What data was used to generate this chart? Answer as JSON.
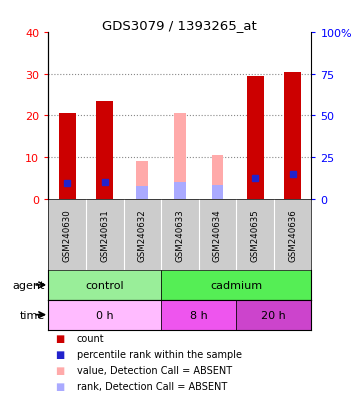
{
  "title": "GDS3079 / 1393265_at",
  "samples": [
    "GSM240630",
    "GSM240631",
    "GSM240632",
    "GSM240633",
    "GSM240634",
    "GSM240635",
    "GSM240636"
  ],
  "count_values": [
    20.5,
    23.5,
    null,
    null,
    null,
    29.5,
    30.5
  ],
  "rank_values": [
    9.5,
    10.0,
    null,
    null,
    null,
    12.5,
    15.0
  ],
  "absent_value_values": [
    null,
    null,
    9.0,
    20.5,
    10.5,
    null,
    null
  ],
  "absent_rank_values": [
    null,
    null,
    7.5,
    10.0,
    8.0,
    null,
    null
  ],
  "ylim_left": [
    0,
    40
  ],
  "ylim_right": [
    0,
    100
  ],
  "yticks_left": [
    0,
    10,
    20,
    30,
    40
  ],
  "yticks_right": [
    0,
    25,
    50,
    75,
    100
  ],
  "count_color": "#cc0000",
  "rank_color": "#2222cc",
  "absent_value_color": "#ffaaaa",
  "absent_rank_color": "#aaaaff",
  "agent_control_color": "#99ee99",
  "agent_cadmium_color": "#55ee55",
  "time_0h_color": "#ffbbff",
  "time_8h_color": "#ee55ee",
  "time_20h_color": "#cc44cc",
  "sample_bg_color": "#cccccc",
  "grid_color": "#888888",
  "agent_label": "agent",
  "time_label": "time",
  "control_label": "control",
  "cadmium_label": "cadmium",
  "legend_items": [
    {
      "color": "#cc0000",
      "label": "count",
      "marker": "square"
    },
    {
      "color": "#2222cc",
      "label": "percentile rank within the sample",
      "marker": "square"
    },
    {
      "color": "#ffaaaa",
      "label": "value, Detection Call = ABSENT",
      "marker": "square"
    },
    {
      "color": "#aaaaff",
      "label": "rank, Detection Call = ABSENT",
      "marker": "square"
    }
  ]
}
